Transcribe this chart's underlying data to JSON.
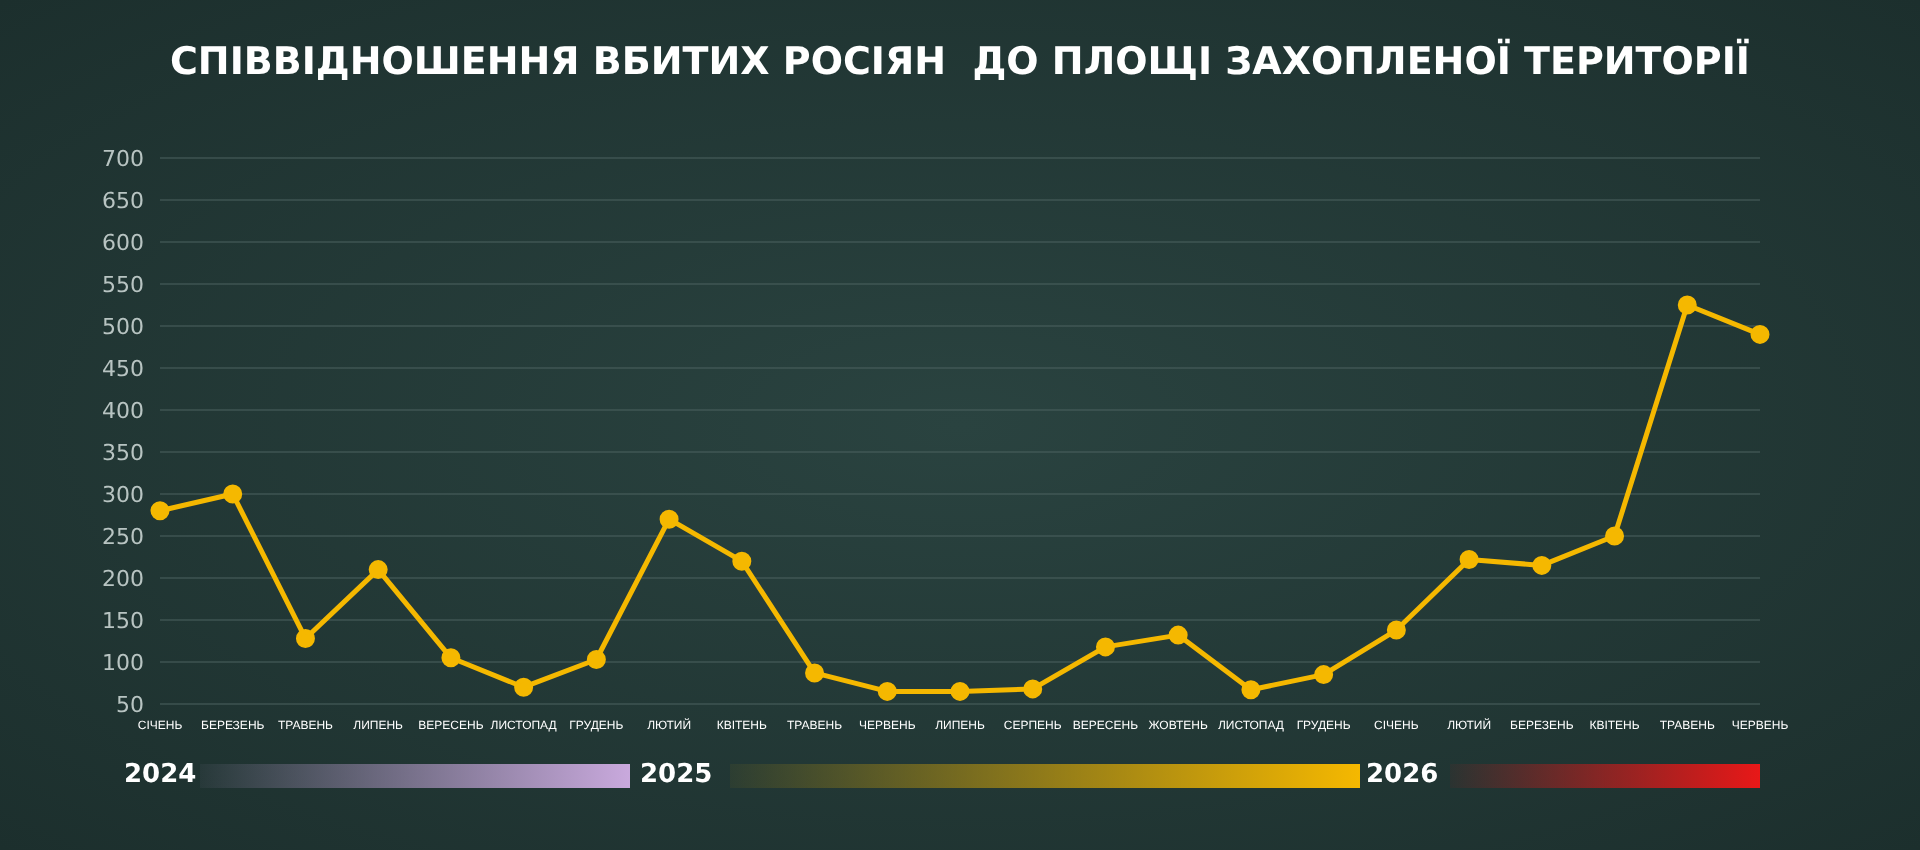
{
  "chart_data": {
    "type": "line",
    "title": "СПІВВІДНОШЕННЯ ВБИТИХ РОСІЯН  ДО ПЛОЩІ ЗАХОПЛЕНОЇ ТЕРИТОРІЇ",
    "categories": [
      "СІЧЕНЬ",
      "БЕРЕЗЕНЬ",
      "ТРАВЕНЬ",
      "ЛИПЕНЬ",
      "ВЕРЕСЕНЬ",
      "ЛИСТОПАД",
      "ГРУДЕНЬ",
      "ЛЮТИЙ",
      "КВІТЕНЬ",
      "ТРАВЕНЬ",
      "ЧЕРВЕНЬ",
      "ЛИПЕНЬ",
      "СЕРПЕНЬ",
      "ВЕРЕСЕНЬ",
      "ЖОВТЕНЬ",
      "ЛИСТОПАД",
      "ГРУДЕНЬ",
      "СІЧЕНЬ",
      "ЛЮТИЙ",
      "БЕРЕЗЕНЬ",
      "КВІТЕНЬ",
      "ТРАВЕНЬ",
      "ЧЕРВЕНЬ"
    ],
    "values": [
      280,
      300,
      128,
      210,
      105,
      70,
      103,
      270,
      220,
      87,
      65,
      65,
      68,
      118,
      132,
      67,
      85,
      138,
      222,
      215,
      250,
      525,
      490
    ],
    "color": "#f5b800",
    "marker": "circle",
    "grid": "y",
    "ylim": [
      50,
      700
    ],
    "yticks": [
      50,
      100,
      150,
      200,
      250,
      300,
      350,
      400,
      450,
      500,
      550,
      600,
      650,
      700
    ],
    "annotations": [
      "2024",
      "2025",
      "2026"
    ]
  }
}
